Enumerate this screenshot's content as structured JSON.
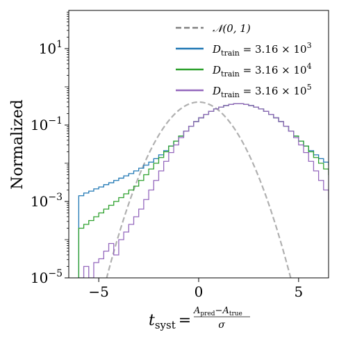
{
  "chart_data": {
    "type": "line",
    "ylabel": "Normalized",
    "xlabel": {
      "main": "t",
      "main_sub": "syst",
      "equals": "=",
      "num_a": "A",
      "num_a_sub": "pred",
      "num_minus": "−",
      "num_b": "A",
      "num_b_sub": "true",
      "den": "σ"
    },
    "xlim": [
      -6.5,
      6.5
    ],
    "ylim_log10": [
      -5,
      2
    ],
    "yscale": "log",
    "xticks": [
      -5,
      0,
      5
    ],
    "xtick_labels": [
      "−5",
      "0",
      "5"
    ],
    "yticks": [
      {
        "base": "10",
        "exp": "1",
        "log10": 1
      },
      {
        "base": "10",
        "exp": "−1",
        "log10": -1
      },
      {
        "base": "10",
        "exp": "−3",
        "log10": -3
      },
      {
        "base": "10",
        "exp": "−5",
        "log10": -5
      }
    ],
    "grid": false,
    "legend_position": "top-right",
    "series": [
      {
        "name": "𝒩(0, 1)",
        "kind": "gaussian",
        "style": "dashed",
        "color": "#b0b0b0",
        "legend_color": "#808080",
        "mu": 0,
        "sigma": 1
      },
      {
        "name": "D_train = 3.16 × 10^3",
        "legend": {
          "sym": "D",
          "sub": "train",
          "rest": " = 3.16 × 10",
          "exp": "3"
        },
        "kind": "histogram",
        "color": "#1f77b4",
        "bin_start": -6,
        "bin_width": 0.25,
        "log10_values": [
          -2.85,
          -2.78,
          -2.73,
          -2.67,
          -2.62,
          -2.56,
          -2.51,
          -2.45,
          -2.39,
          -2.33,
          -2.27,
          -2.2,
          -2.13,
          -2.05,
          -1.97,
          -1.88,
          -1.78,
          -1.67,
          -1.55,
          -1.42,
          -1.29,
          -1.16,
          -1.03,
          -0.91,
          -0.81,
          -0.72,
          -0.64,
          -0.58,
          -0.53,
          -0.49,
          -0.46,
          -0.44,
          -0.44,
          -0.46,
          -0.49,
          -0.53,
          -0.58,
          -0.64,
          -0.72,
          -0.81,
          -0.91,
          -1.03,
          -1.16,
          -1.29,
          -1.42,
          -1.55,
          -1.67,
          -1.78,
          -1.88,
          -1.97,
          -2.05,
          -2.13,
          -2.2,
          -2.27,
          -2.33,
          -2.39,
          -2.45,
          -2.51,
          -2.56,
          -2.62,
          -2.67,
          -2.73,
          -2.78,
          -2.85
        ]
      },
      {
        "name": "D_train = 3.16 × 10^4",
        "legend": {
          "sym": "D",
          "sub": "train",
          "rest": " = 3.16 × 10",
          "exp": "4"
        },
        "kind": "histogram",
        "color": "#2ca02c",
        "bin_start": -6,
        "bin_width": 0.25,
        "log10_values": [
          -3.7,
          -3.6,
          -3.5,
          -3.4,
          -3.3,
          -3.2,
          -3.1,
          -3.0,
          -2.9,
          -2.8,
          -2.7,
          -2.6,
          -2.45,
          -2.3,
          -2.15,
          -2.0,
          -1.85,
          -1.7,
          -1.55,
          -1.42,
          -1.29,
          -1.16,
          -1.03,
          -0.91,
          -0.81,
          -0.72,
          -0.64,
          -0.58,
          -0.53,
          -0.49,
          -0.46,
          -0.44,
          -0.44,
          -0.46,
          -0.49,
          -0.53,
          -0.58,
          -0.64,
          -0.72,
          -0.81,
          -0.91,
          -1.03,
          -1.16,
          -1.29,
          -1.42,
          -1.55,
          -1.7,
          -1.85,
          -2.0,
          -2.15,
          -2.3,
          -2.45,
          -2.6,
          -2.7,
          -2.8,
          -2.9,
          -3.0,
          -3.1,
          -3.2,
          -3.3,
          -3.4,
          -3.5,
          -3.6,
          -3.7
        ]
      },
      {
        "name": "D_train = 3.16 × 10^5",
        "legend": {
          "sym": "D",
          "sub": "train",
          "rest": " = 3.16 × 10",
          "exp": "5"
        },
        "kind": "histogram",
        "color": "#9467bd",
        "bin_start": -6,
        "bin_width": 0.25,
        "log10_values": [
          -5.0,
          -4.7,
          -5.0,
          -4.6,
          -4.5,
          -4.3,
          -4.1,
          -4.4,
          -4.0,
          -3.8,
          -3.6,
          -3.4,
          -3.2,
          -2.95,
          -2.7,
          -2.45,
          -2.2,
          -1.95,
          -1.72,
          -1.52,
          -1.33,
          -1.16,
          -1.03,
          -0.91,
          -0.81,
          -0.72,
          -0.64,
          -0.58,
          -0.53,
          -0.49,
          -0.46,
          -0.44,
          -0.44,
          -0.46,
          -0.49,
          -0.53,
          -0.58,
          -0.64,
          -0.72,
          -0.81,
          -0.91,
          -1.03,
          -1.16,
          -1.33,
          -1.52,
          -1.72,
          -1.95,
          -2.2,
          -2.45,
          -2.7,
          -2.95,
          -3.2,
          -3.4,
          -3.6,
          -3.8,
          -4.0,
          -4.4,
          -4.1,
          -4.3,
          -4.5,
          -4.6,
          -5.0,
          -4.7,
          -5.0
        ]
      }
    ]
  }
}
